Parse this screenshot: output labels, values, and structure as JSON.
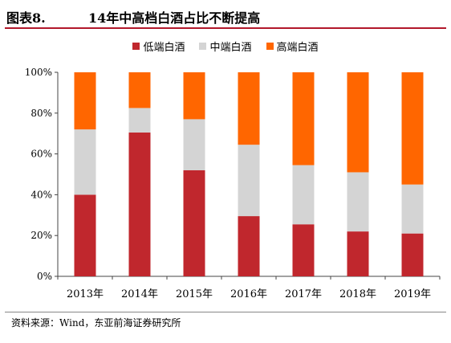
{
  "header": {
    "figure_number": "图表8.",
    "figure_title": "14年中高档白酒占比不断提高"
  },
  "footer": {
    "source": "资料来源：Wind，东亚前海证券研究所"
  },
  "colors": {
    "low": "#c0272d",
    "mid": "#d4d4d4",
    "high": "#ff6600",
    "header_rule": "#b2182b"
  },
  "chart_data": {
    "type": "bar",
    "stacked": true,
    "categories": [
      "2013年",
      "2014年",
      "2015年",
      "2016年",
      "2017年",
      "2018年",
      "2019年"
    ],
    "series": [
      {
        "name": "低端白酒",
        "color": "#c0272d",
        "values": [
          40,
          70.5,
          52,
          29.5,
          25.5,
          22,
          21
        ]
      },
      {
        "name": "中端白酒",
        "color": "#d4d4d4",
        "values": [
          32,
          12,
          25,
          35,
          29,
          29,
          24
        ]
      },
      {
        "name": "高端白酒",
        "color": "#ff6600",
        "values": [
          28,
          17.5,
          23,
          35.5,
          45.5,
          49,
          55
        ]
      }
    ],
    "y_ticks": [
      "0%",
      "20%",
      "40%",
      "60%",
      "80%",
      "100%"
    ],
    "ylim": [
      0,
      100
    ],
    "grid": false,
    "legend_position": "top-center"
  }
}
